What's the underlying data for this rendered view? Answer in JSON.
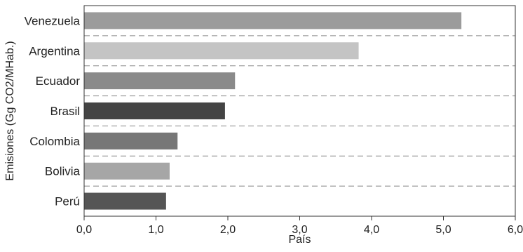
{
  "chart_data": {
    "type": "bar",
    "orientation": "horizontal",
    "title": "",
    "xlabel": "País",
    "ylabel": "Emisiones (Gg CO2/MHab.)",
    "categories": [
      "Venezuela",
      "Argentina",
      "Ecuador",
      "Brasil",
      "Colombia",
      "Bolivia",
      "Perú"
    ],
    "values": [
      5.25,
      3.82,
      2.1,
      1.96,
      1.3,
      1.19,
      1.14
    ],
    "bar_colors": [
      "#9b9b9b",
      "#c4c4c4",
      "#8a8a8a",
      "#444444",
      "#777777",
      "#a6a6a6",
      "#555555"
    ],
    "xlim": [
      0,
      6
    ],
    "xticks": [
      "0,0",
      "1,0",
      "2,0",
      "3,0",
      "4,0",
      "5,0",
      "6,0"
    ],
    "grid": "horizontal dashed",
    "legend": "none"
  }
}
